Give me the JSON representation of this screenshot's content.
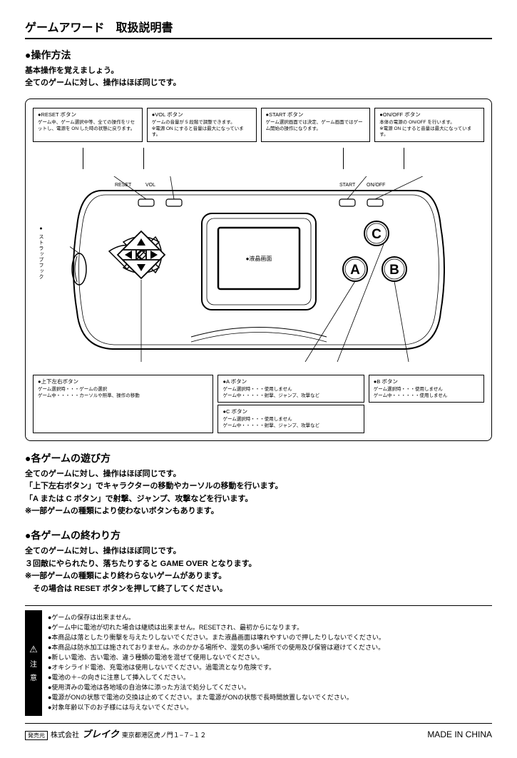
{
  "page_title": "ゲームアワード　取扱説明書",
  "operation": {
    "title": "●操作方法",
    "line1": "基本操作を覚えましょう。",
    "line2": "全てのゲームに対し、操作はほぼ同じです。"
  },
  "callouts_top": {
    "reset": {
      "title": "●RESET ボタン",
      "body": "ゲーム中、ゲーム選択中等、全ての操作をリセットし、電源を ON した時の状態に戻ります。"
    },
    "vol": {
      "title": "●VOL ボタン",
      "body": "ゲームの音量が 5 段階で調整できます。\n※電源 ON にすると音量は最大になっています。"
    },
    "start": {
      "title": "●START ボタン",
      "body": "ゲーム選択画面では決定、ゲーム画面ではゲーム開始の操作になります。"
    },
    "onoff": {
      "title": "●ON/OFF ボタン",
      "body": "本体の電源の ON/OFF を行います。\n※電源 ON にすると音量は最大になっています。"
    }
  },
  "callouts_bottom": {
    "dpad": {
      "title": "●上下左右ボタン",
      "body": "ゲーム選択時・・・ゲームの選択\nゲーム中・・・・・カーソルや照準、操作の移動"
    },
    "a_btn": {
      "title": "●A ボタン",
      "body": "ゲーム選択時・・・使用しません\nゲーム中・・・・・射撃、ジャンプ、攻撃など"
    },
    "c_btn": {
      "title": "●C ボタン",
      "body": "ゲーム選択時・・・使用しません\nゲーム中・・・・・射撃、ジャンプ、攻撃など"
    },
    "b_btn": {
      "title": "●B ボタン",
      "body": "ゲーム選択時・・・使用しません\nゲーム中・・・・・・使用しません"
    }
  },
  "strap_label": "● ストラップフック",
  "screen_label": "●液晶画面",
  "labels": {
    "reset": "RESET",
    "vol": "VOL",
    "start": "START",
    "onoff": "ON/OFF"
  },
  "buttons": {
    "a": "A",
    "b": "B",
    "c": "C"
  },
  "howto_play": {
    "title": "●各ゲームの遊び方",
    "body": "全てのゲームに対し、操作はほぼ同じです。\n「上下左右ボタン」でキャラクターの移動やカーソルの移動を行います。\n「A または C ボタン」で射撃、ジャンプ、攻撃などを行います。\n※一部ゲームの種類により使わないボタンもあります。"
  },
  "howto_end": {
    "title": "●各ゲームの終わり方",
    "body": "全てのゲームに対し、操作はほぼ同じです。\n３回敵にやられたり、落ちたりすると GAME OVER となります。\n※一部ゲームの種類により終わらないゲームがあります。\n　その場合は RESET ボタンを押して終了してください。"
  },
  "caution": {
    "label1": "注",
    "label2": "意",
    "lines": [
      "●ゲームの保存は出来ません。",
      "●ゲーム中に電池が切れた場合は継続は出来ません。RESETされ、最初からになります。",
      "●本商品は落としたり衝撃を与えたりしないでください。また液晶画面は壊れやすいので押したりしないでください。",
      "●本商品は防水加工は施されておりません。水のかかる場所や、湿気の多い場所での使用及び保管は避けてください。",
      "●新しい電池、古い電池、違う種類の電池を混ぜて使用しないでください。",
      "●オキシライド電池、充電池は使用しないでください。過電流となり危険です。",
      "●電池の＋−の向きに注意して挿入してください。",
      "●使用済みの電池は各地域の自治体に添った方法で処分してください。",
      "●電源がONの状態で電池の交換は止めてください。また電源がONの状態で長時間放置しないでください。",
      "●対象年齢以下のお子様には与えないでください。"
    ]
  },
  "footer": {
    "dist": "発売元",
    "company_kabu": "株式会社",
    "company_name": "ブレイク",
    "address": "東京都港区虎ノ門１−７−１２",
    "made_in": "MADE IN CHINA"
  },
  "colors": {
    "text": "#000000",
    "bg": "#ffffff"
  }
}
